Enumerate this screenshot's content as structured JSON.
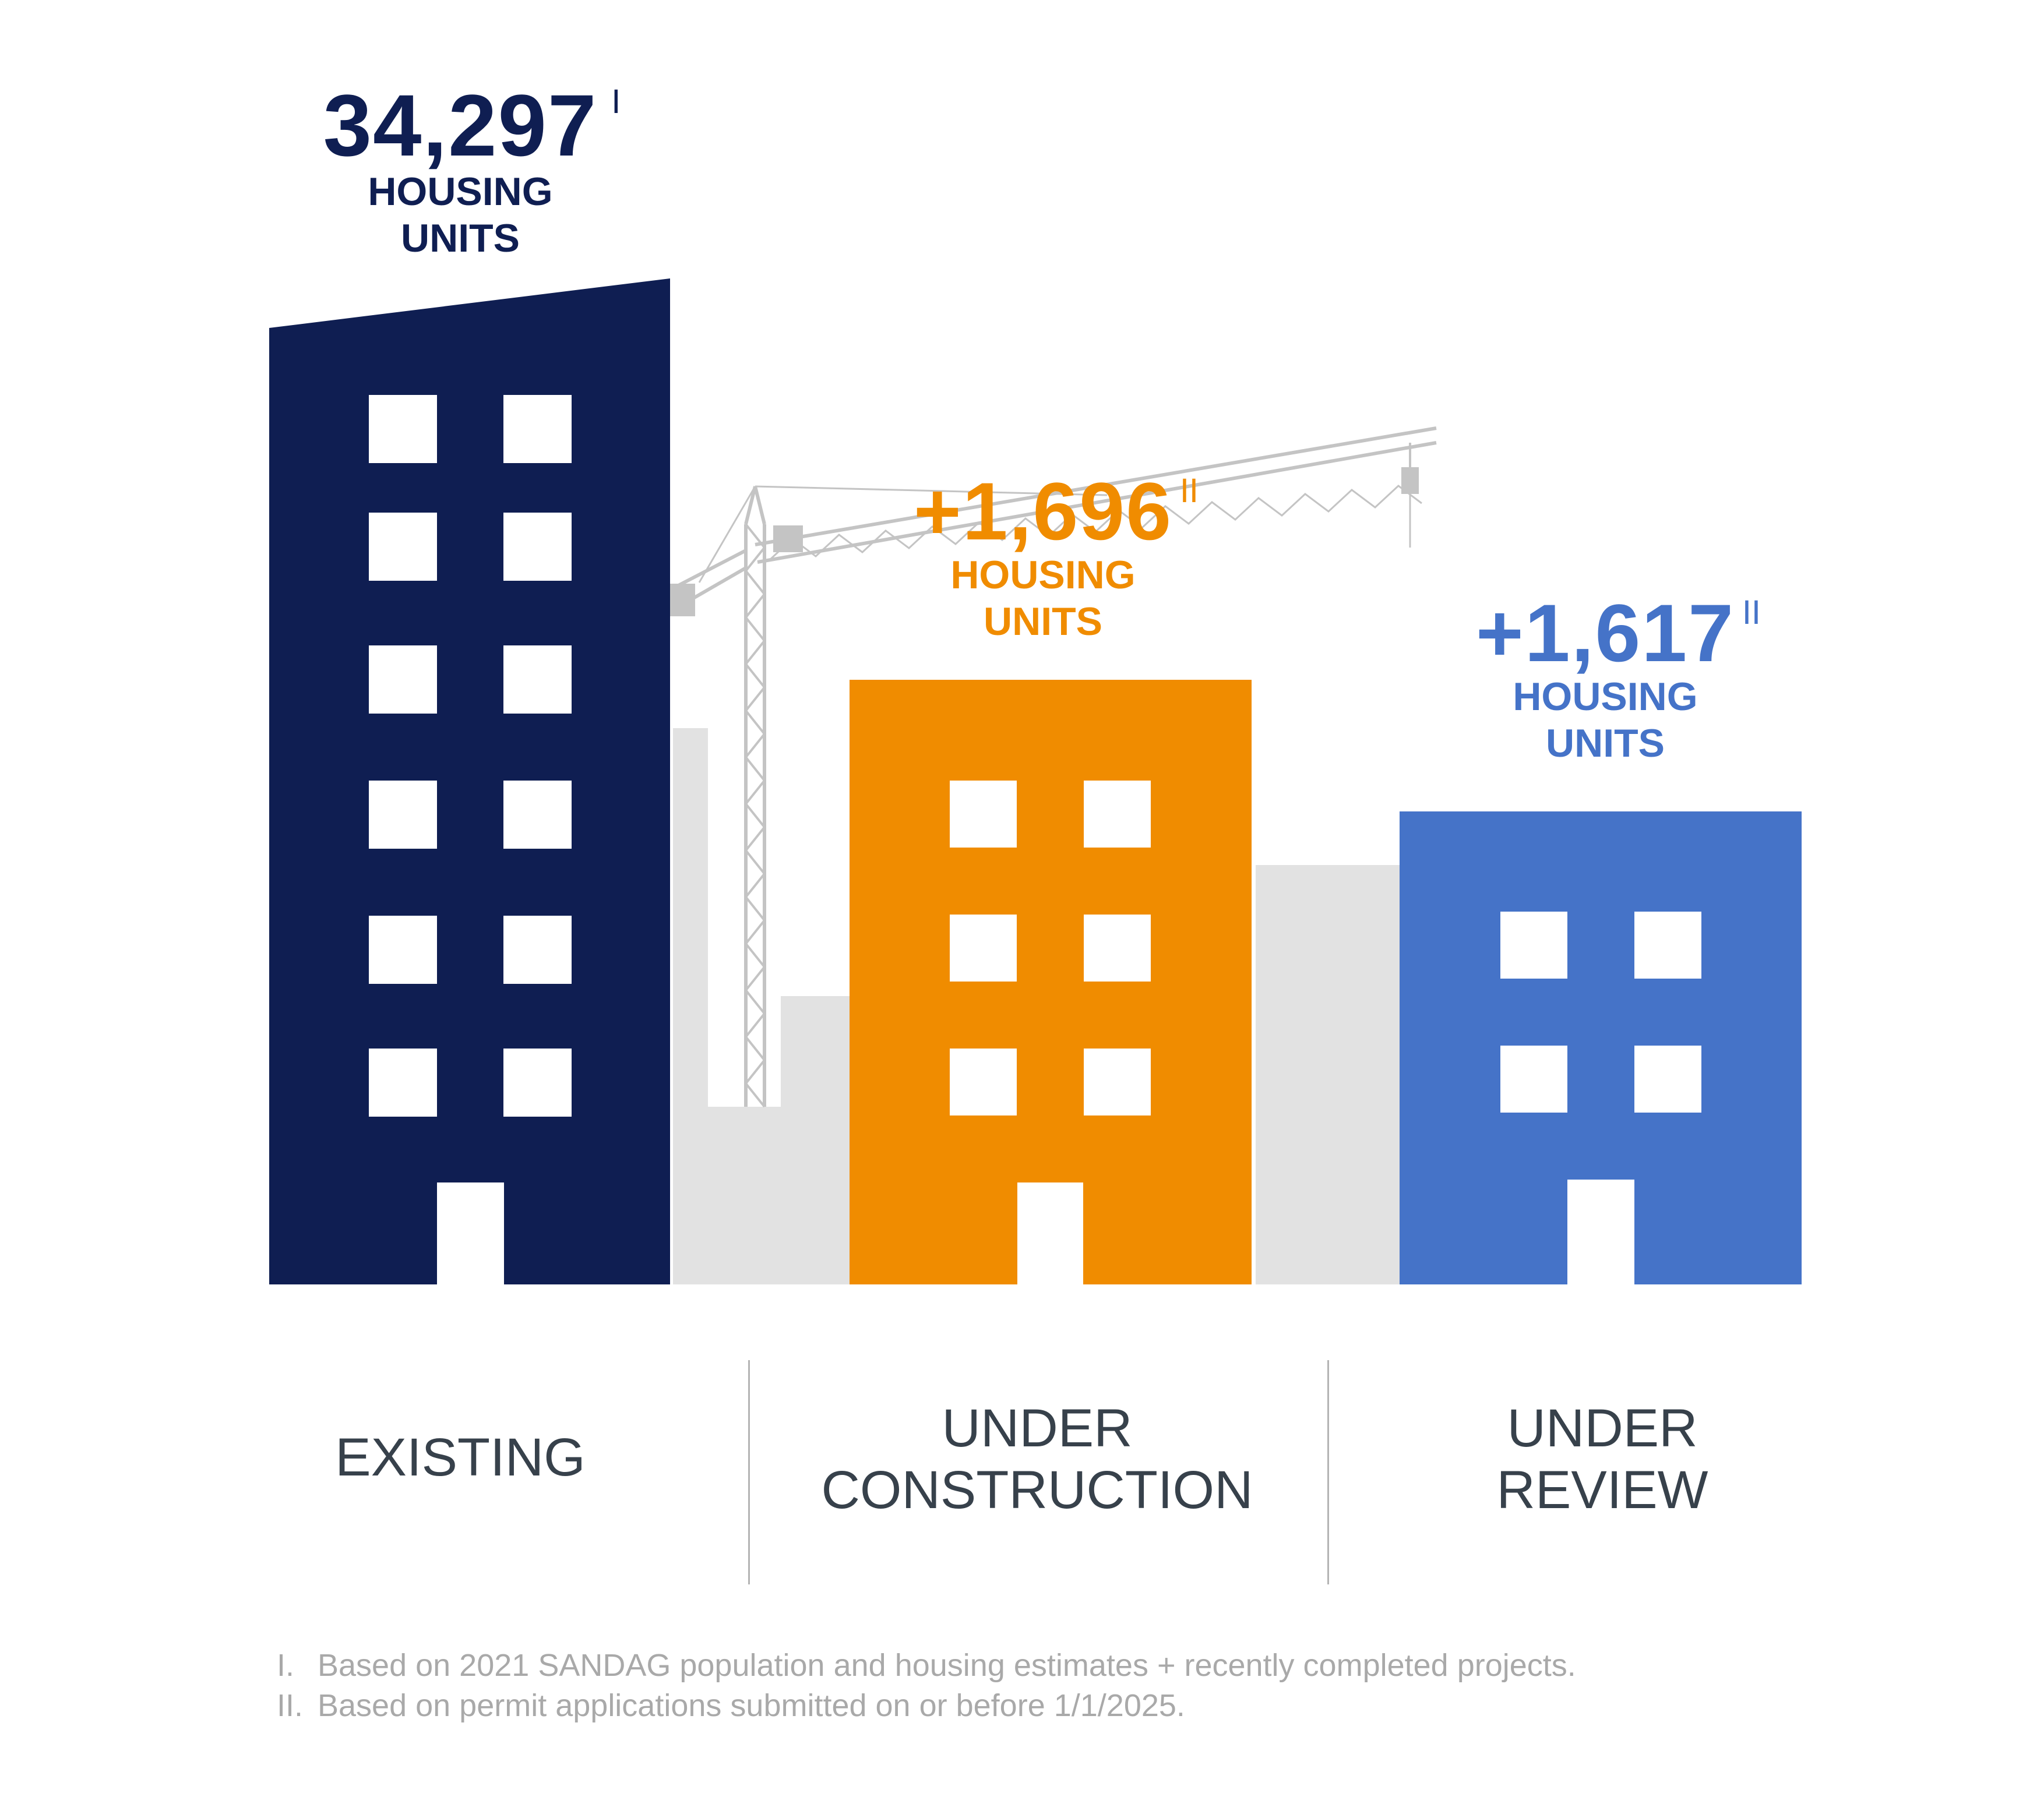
{
  "colors": {
    "navy": "#0f1e52",
    "orange": "#f08c00",
    "blue": "#4573c8",
    "background_buildings": "#e2e2e2",
    "crane": "#c4c4c4",
    "category_text": "#37414b",
    "footnote_text": "#a9a9a9"
  },
  "buildings": [
    {
      "key": "existing",
      "value": "34,297",
      "note_marker": "I",
      "unit_line1": "HOUSING",
      "unit_line2": "UNITS",
      "category_lines": [
        "EXISTING"
      ],
      "color": "#0f1e52"
    },
    {
      "key": "under_construction",
      "value": "+1,696",
      "note_marker": "II",
      "unit_line1": "HOUSING",
      "unit_line2": "UNITS",
      "category_lines": [
        "UNDER",
        "CONSTRUCTION"
      ],
      "color": "#f08c00"
    },
    {
      "key": "under_review",
      "value": "+1,617",
      "note_marker": "II",
      "unit_line1": "HOUSING",
      "unit_line2": "UNITS",
      "category_lines": [
        "UNDER",
        "REVIEW"
      ],
      "color": "#4573c8"
    }
  ],
  "footnotes": [
    {
      "marker": "I.",
      "text": "Based on 2021 SANDAG population and housing estimates + recently completed projects."
    },
    {
      "marker": "II.",
      "text": "Based on permit applications submitted on or before 1/1/2025."
    }
  ],
  "icons": [
    "building-icon",
    "crane-icon"
  ]
}
